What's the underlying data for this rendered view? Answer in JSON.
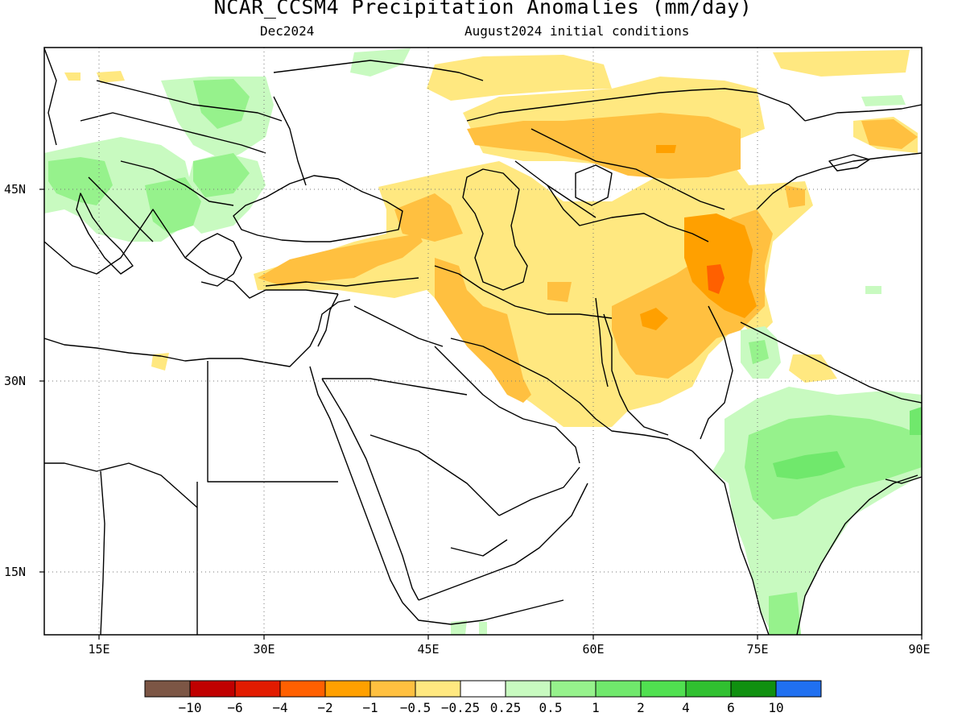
{
  "title": "NCAR_CCSM4 Precipitation Anomalies (mm/day)",
  "subtitle_left": "Dec2024",
  "subtitle_right": "August2024 initial conditions",
  "map": {
    "lon_range": [
      10,
      90
    ],
    "lat_range": [
      10,
      55
    ],
    "lat_ticks": [
      "45N",
      "30N",
      "15N"
    ],
    "lon_ticks": [
      "15E",
      "30E",
      "45E",
      "60E",
      "75E",
      "90E"
    ],
    "grid": "dotted",
    "colors": {
      "dry_light": "#ffe880",
      "dry_med": "#ffc040",
      "dry_strong": "#ffa000",
      "dry_vstrong": "#ff6000",
      "dry_max": "#e02000",
      "wet_light": "#c8fac0",
      "wet_med": "#96f28c",
      "wet_strong": "#70e86c",
      "ocean": "#ffffff",
      "coast": "#000000"
    }
  },
  "colorbar": {
    "colors": [
      "#7c5645",
      "#c00000",
      "#e21b00",
      "#ff6000",
      "#ffa000",
      "#ffc040",
      "#ffe880",
      "#ffffff",
      "#c8fac0",
      "#96f28c",
      "#70e86c",
      "#50e050",
      "#30c030",
      "#109010",
      "#2070f0"
    ],
    "labels": [
      "−10",
      "−6",
      "−4",
      "−2",
      "−1",
      "−0.5",
      "−0.25",
      "0.25",
      "0.5",
      "1",
      "2",
      "4",
      "6",
      "10"
    ]
  }
}
